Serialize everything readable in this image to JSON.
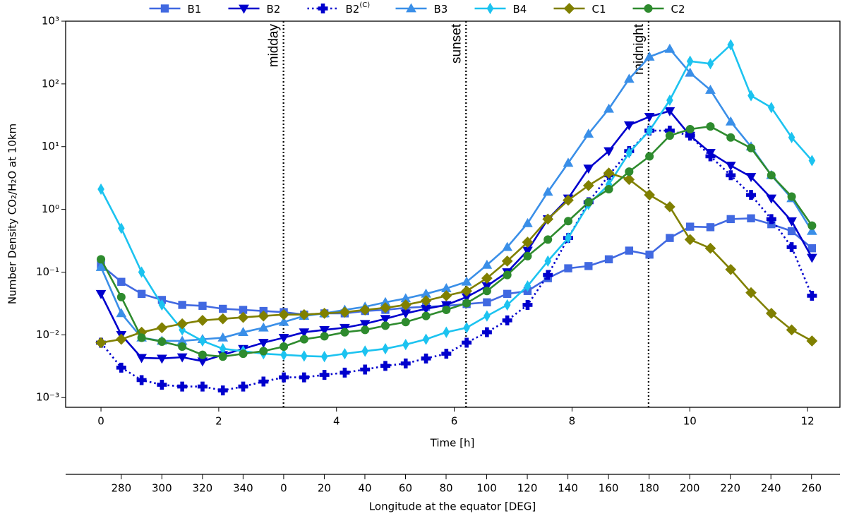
{
  "chart_data": {
    "type": "line",
    "y_scale": "log",
    "legend": "top",
    "xlabel": "Time [h]",
    "ylabel": "Number Density CO₂/H₂O at 10km",
    "x2label": "Longitude at the equator [DEG]",
    "xlim": [
      -0.6,
      12.55
    ],
    "xticks": [
      0,
      2,
      4,
      6,
      8,
      10,
      12
    ],
    "ylim": [
      0.0007,
      1000
    ],
    "yticks": [
      {
        "value": 0.001,
        "label": "10⁻³"
      },
      {
        "value": 0.01,
        "label": "10⁻²"
      },
      {
        "value": 0.1,
        "label": "10⁻¹"
      },
      {
        "value": 1,
        "label": "10⁰"
      },
      {
        "value": 10,
        "label": "10¹"
      },
      {
        "value": 100,
        "label": "10²"
      },
      {
        "value": 1000,
        "label": "10³"
      }
    ],
    "x2lim": [
      252.6,
      634
    ],
    "x2ticks": [
      280,
      300,
      320,
      340,
      {
        "value": 360,
        "label": "0"
      },
      {
        "value": 380,
        "label": "20"
      },
      {
        "value": 400,
        "label": "40"
      },
      {
        "value": 420,
        "label": "60"
      },
      {
        "value": 440,
        "label": "80"
      },
      {
        "value": 460,
        "label": "100"
      },
      {
        "value": 480,
        "label": "120"
      },
      {
        "value": 500,
        "label": "140"
      },
      {
        "value": 520,
        "label": "160"
      },
      {
        "value": 540,
        "label": "180"
      },
      {
        "value": 560,
        "label": "200"
      },
      {
        "value": 580,
        "label": "220"
      },
      {
        "value": 600,
        "label": "240"
      },
      {
        "value": 620,
        "label": "260"
      }
    ],
    "annotations": [
      {
        "x": 3.1,
        "label": "midday"
      },
      {
        "x": 6.2,
        "label": "sunset"
      },
      {
        "x": 9.3,
        "label": "midnight"
      }
    ],
    "x": [
      0,
      0.345,
      0.69,
      1.035,
      1.38,
      1.725,
      2.07,
      2.415,
      2.76,
      3.105,
      3.45,
      3.795,
      4.14,
      4.485,
      4.83,
      5.175,
      5.52,
      5.865,
      6.21,
      6.555,
      6.9,
      7.245,
      7.59,
      7.935,
      8.28,
      8.625,
      8.97,
      9.315,
      9.66,
      10.005,
      10.35,
      10.695,
      11.04,
      11.385,
      11.73,
      12.075
    ],
    "series": [
      {
        "name": "B1",
        "color": "#4169e1",
        "marker": "square",
        "linestyle": "solid",
        "values": [
          0.13,
          0.07,
          0.045,
          0.036,
          0.03,
          0.029,
          0.026,
          0.025,
          0.024,
          0.023,
          0.021,
          0.022,
          0.022,
          0.024,
          0.025,
          0.027,
          0.028,
          0.029,
          0.031,
          0.033,
          0.045,
          0.05,
          0.08,
          0.115,
          0.125,
          0.16,
          0.22,
          0.19,
          0.35,
          0.53,
          0.52,
          0.7,
          0.72,
          0.58,
          0.45,
          0.24
        ]
      },
      {
        "name": "B2",
        "color": "#0000cd",
        "marker": "triangle-down",
        "linestyle": "solid",
        "values": [
          0.045,
          0.01,
          0.0043,
          0.0042,
          0.0044,
          0.0038,
          0.0048,
          0.006,
          0.0075,
          0.009,
          0.011,
          0.012,
          0.013,
          0.015,
          0.018,
          0.022,
          0.026,
          0.03,
          0.04,
          0.06,
          0.1,
          0.22,
          0.7,
          1.5,
          4.5,
          8.5,
          22,
          30,
          37,
          15,
          8,
          5,
          3.3,
          1.5,
          0.65,
          0.17
        ]
      },
      {
        "name": "B2",
        "name_superscript": "(C)",
        "color": "#0000cd",
        "marker": "plus",
        "linestyle": "dotted",
        "values": [
          0.0075,
          0.003,
          0.0019,
          0.0016,
          0.0015,
          0.0015,
          0.0013,
          0.0015,
          0.0018,
          0.0021,
          0.0021,
          0.0023,
          0.0025,
          0.0028,
          0.0032,
          0.0035,
          0.0042,
          0.005,
          0.0075,
          0.011,
          0.017,
          0.03,
          0.09,
          0.35,
          1.3,
          3.5,
          8.5,
          18,
          18,
          15,
          7,
          3.5,
          1.7,
          0.7,
          0.25,
          0.042
        ]
      },
      {
        "name": "B3",
        "color": "#3a8fe8",
        "marker": "triangle-up",
        "linestyle": "solid",
        "values": [
          0.12,
          0.022,
          0.009,
          0.008,
          0.008,
          0.0085,
          0.009,
          0.011,
          0.013,
          0.016,
          0.02,
          0.022,
          0.025,
          0.028,
          0.033,
          0.038,
          0.045,
          0.055,
          0.07,
          0.13,
          0.25,
          0.6,
          1.9,
          5.5,
          16,
          40,
          120,
          270,
          360,
          150,
          80,
          25,
          10,
          3.5,
          1.5,
          0.45
        ]
      },
      {
        "name": "B4",
        "color": "#1cc3f0",
        "marker": "thin-diamond",
        "linestyle": "solid",
        "values": [
          2.1,
          0.5,
          0.1,
          0.03,
          0.012,
          0.008,
          0.006,
          0.0055,
          0.005,
          0.0048,
          0.0046,
          0.0045,
          0.005,
          0.0055,
          0.006,
          0.007,
          0.0085,
          0.011,
          0.013,
          0.02,
          0.03,
          0.06,
          0.15,
          0.35,
          1.2,
          2.5,
          8,
          18,
          55,
          230,
          210,
          420,
          65,
          42,
          14,
          6
        ]
      },
      {
        "name": "C1",
        "color": "#808000",
        "marker": "diamond",
        "linestyle": "solid",
        "values": [
          0.0075,
          0.0085,
          0.011,
          0.013,
          0.015,
          0.017,
          0.018,
          0.019,
          0.02,
          0.021,
          0.021,
          0.022,
          0.023,
          0.025,
          0.027,
          0.03,
          0.035,
          0.042,
          0.05,
          0.08,
          0.15,
          0.3,
          0.7,
          1.4,
          2.4,
          3.8,
          3,
          1.7,
          1.1,
          0.33,
          0.24,
          0.11,
          0.047,
          0.022,
          0.012,
          0.008
        ]
      },
      {
        "name": "C2",
        "color": "#2e8b2e",
        "marker": "circle",
        "linestyle": "solid",
        "values": [
          0.16,
          0.04,
          0.009,
          0.0078,
          0.0065,
          0.0048,
          0.0045,
          0.005,
          0.0055,
          0.0065,
          0.0085,
          0.0095,
          0.011,
          0.012,
          0.014,
          0.016,
          0.02,
          0.025,
          0.032,
          0.05,
          0.09,
          0.18,
          0.33,
          0.65,
          1.3,
          2.1,
          4,
          7,
          15,
          19,
          21,
          14,
          9.5,
          3.5,
          1.6,
          0.55
        ]
      }
    ]
  }
}
